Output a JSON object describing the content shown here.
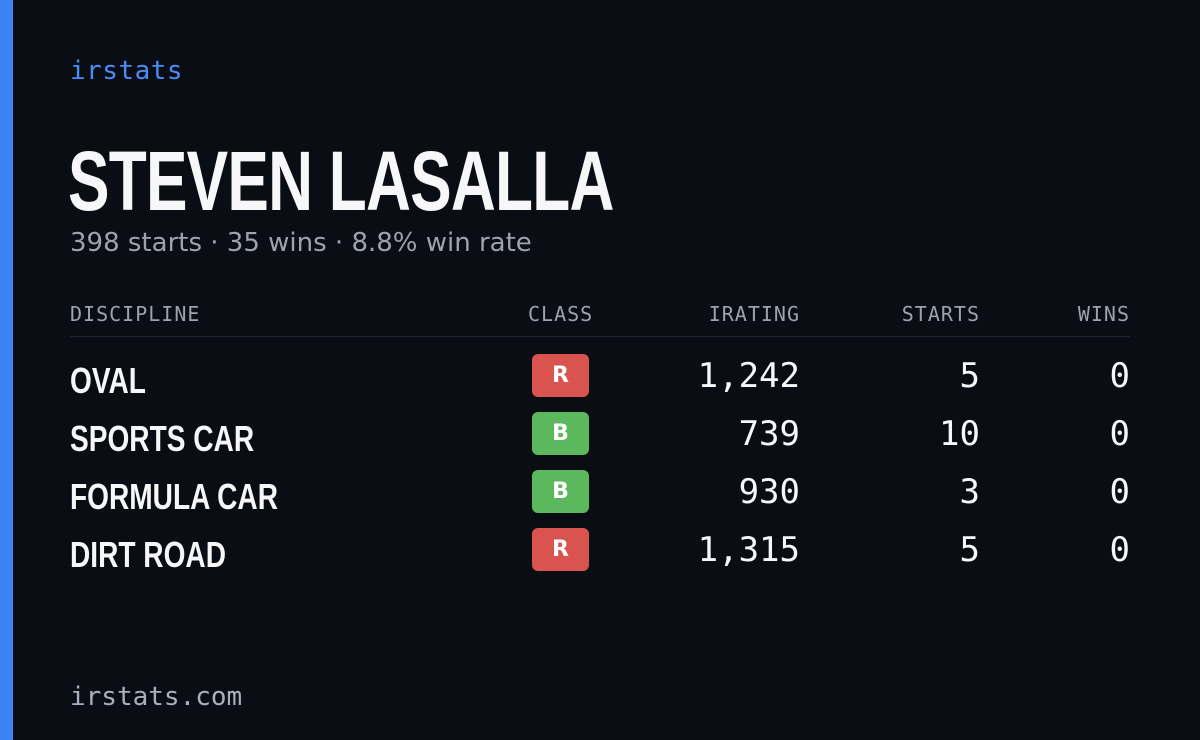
{
  "brand": "irstats",
  "driver": {
    "name": "STEVEN LASALLA",
    "summary": "398 starts · 35 wins · 8.8% win rate"
  },
  "table": {
    "headers": {
      "discipline": "DISCIPLINE",
      "class": "CLASS",
      "irating": "IRATING",
      "starts": "STARTS",
      "wins": "WINS"
    },
    "rows": [
      {
        "discipline": "OVAL",
        "class": "R",
        "class_color": "#d9534f",
        "irating": "1,242",
        "starts": "5",
        "wins": "0"
      },
      {
        "discipline": "SPORTS CAR",
        "class": "B",
        "class_color": "#5cb85c",
        "irating": "739",
        "starts": "10",
        "wins": "0"
      },
      {
        "discipline": "FORMULA CAR",
        "class": "B",
        "class_color": "#5cb85c",
        "irating": "930",
        "starts": "3",
        "wins": "0"
      },
      {
        "discipline": "DIRT ROAD",
        "class": "R",
        "class_color": "#d9534f",
        "irating": "1,315",
        "starts": "5",
        "wins": "0"
      }
    ]
  },
  "footer": {
    "url": "irstats.com"
  },
  "colors": {
    "accent": "#3b82f6",
    "background": "#0a0d14",
    "class_r": "#d9534f",
    "class_b": "#5cb85c"
  }
}
